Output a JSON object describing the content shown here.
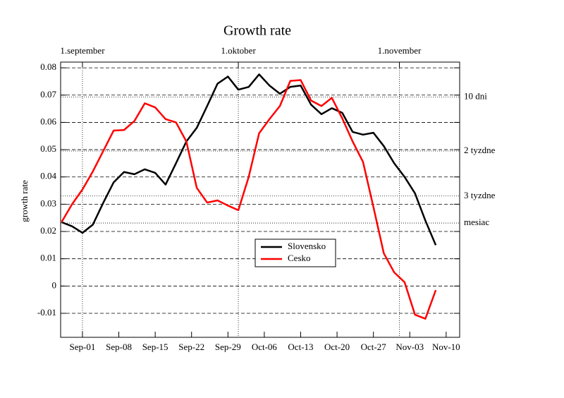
{
  "chart_data": {
    "type": "line",
    "title": "Growth rate",
    "y_label": "growth rate",
    "x": [
      -4,
      -2,
      0,
      2,
      4,
      6,
      8,
      10,
      12,
      14,
      16,
      18,
      20,
      22,
      24,
      26,
      28,
      30,
      32,
      34,
      36,
      38,
      40,
      42,
      44,
      46,
      48,
      50,
      52,
      54,
      56,
      58,
      60,
      62,
      64,
      66,
      68
    ],
    "series": [
      {
        "name": "Slovensko",
        "color": "#000000",
        "values": [
          0.0234,
          0.0219,
          0.0195,
          0.0225,
          0.0305,
          0.038,
          0.0418,
          0.041,
          0.0428,
          0.0415,
          0.0372,
          0.045,
          0.053,
          0.058,
          0.066,
          0.0742,
          0.0768,
          0.072,
          0.073,
          0.0776,
          0.0735,
          0.0705,
          0.073,
          0.0735,
          0.0665,
          0.063,
          0.0652,
          0.0635,
          0.0565,
          0.0555,
          0.0562,
          0.0513,
          0.045,
          0.04,
          0.034,
          0.024,
          0.015
        ]
      },
      {
        "name": "Cesko",
        "color": "#ff0000",
        "values": [
          0.0235,
          0.03,
          0.0354,
          0.042,
          0.0495,
          0.057,
          0.0572,
          0.0605,
          0.067,
          0.0655,
          0.0612,
          0.06,
          0.053,
          0.036,
          0.0306,
          0.0314,
          0.0295,
          0.0278,
          0.04,
          0.056,
          0.0612,
          0.066,
          0.0752,
          0.0755,
          0.068,
          0.066,
          0.069,
          0.0615,
          0.053,
          0.0455,
          0.029,
          0.012,
          0.005,
          0.0014,
          -0.0105,
          -0.012,
          -0.0015
        ]
      }
    ],
    "xlim": [
      -4.2,
      72.6
    ],
    "xticks": [
      {
        "value": 0,
        "label": "Sep-01"
      },
      {
        "value": 7,
        "label": "Sep-08"
      },
      {
        "value": 14,
        "label": "Sep-15"
      },
      {
        "value": 21,
        "label": "Sep-22"
      },
      {
        "value": 28,
        "label": "Sep-29"
      },
      {
        "value": 35,
        "label": "Oct-06"
      },
      {
        "value": 42,
        "label": "Oct-13"
      },
      {
        "value": 49,
        "label": "Oct-20"
      },
      {
        "value": 56,
        "label": "Oct-27"
      },
      {
        "value": 63,
        "label": "Nov-03"
      },
      {
        "value": 70,
        "label": "Nov-10"
      }
    ],
    "x2ticks": [
      {
        "value": 0,
        "label": "1.september"
      },
      {
        "value": 30,
        "label": "1.oktober"
      },
      {
        "value": 61,
        "label": "1.november"
      }
    ],
    "ylim": [
      -0.0188,
      0.0821
    ],
    "yticks": [
      -0.01,
      0,
      0.01,
      0.02,
      0.03,
      0.04,
      0.05,
      0.06,
      0.07,
      0.08
    ],
    "reference_lines": [
      {
        "value": 0.0693,
        "label": "10 dni"
      },
      {
        "value": 0.0495,
        "label": "2 tyzdne"
      },
      {
        "value": 0.033,
        "label": "3 tyzdne"
      },
      {
        "value": 0.0231,
        "label": "mesiac"
      }
    ],
    "grid": true
  }
}
